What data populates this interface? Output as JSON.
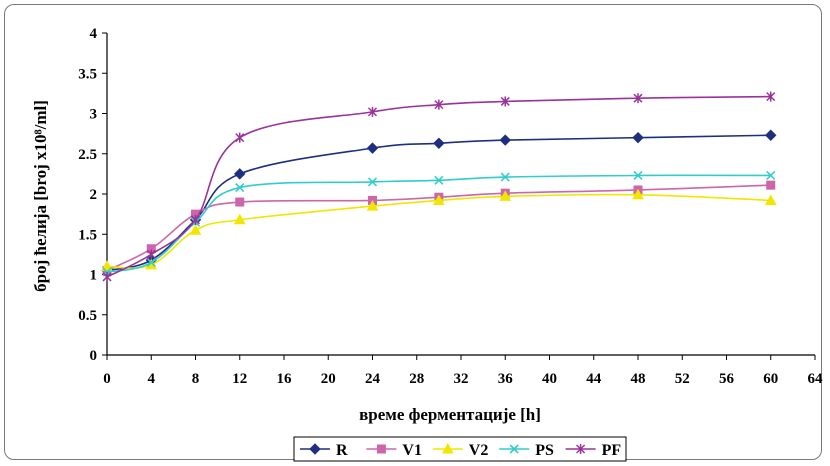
{
  "chart_data": {
    "type": "line",
    "xlabel": "време ферментације [h]",
    "ylabel": "број ћелија [broj x10⁸/ml]",
    "xlim": [
      0,
      64
    ],
    "ylim": [
      0,
      4
    ],
    "xticks": [
      0,
      4,
      8,
      12,
      16,
      20,
      24,
      28,
      32,
      36,
      40,
      44,
      48,
      52,
      56,
      60,
      64
    ],
    "yticks": [
      0,
      0.5,
      1,
      1.5,
      2,
      2.5,
      3,
      3.5,
      4
    ],
    "grid": false,
    "legend_position": "bottom",
    "x": [
      0,
      4,
      8,
      12,
      24,
      30,
      36,
      48,
      60
    ],
    "series": [
      {
        "name": "R",
        "color": "#1f2f80",
        "marker": "diamond",
        "values": [
          1.05,
          1.18,
          1.68,
          2.25,
          2.57,
          2.63,
          2.67,
          2.7,
          2.73
        ]
      },
      {
        "name": "V1",
        "color": "#cc66aa",
        "marker": "square",
        "values": [
          1.05,
          1.32,
          1.75,
          1.9,
          1.92,
          1.96,
          2.01,
          2.05,
          2.11
        ]
      },
      {
        "name": "V2",
        "color": "#f2e600",
        "marker": "triangle",
        "values": [
          1.1,
          1.12,
          1.55,
          1.68,
          1.85,
          1.92,
          1.97,
          1.99,
          1.92
        ]
      },
      {
        "name": "PS",
        "color": "#33cccc",
        "marker": "x",
        "values": [
          1.03,
          1.15,
          1.65,
          2.08,
          2.15,
          2.17,
          2.21,
          2.23,
          2.23
        ]
      },
      {
        "name": "PF",
        "color": "#993399",
        "marker": "star",
        "values": [
          0.97,
          1.25,
          1.68,
          2.7,
          3.02,
          3.11,
          3.15,
          3.19,
          3.21
        ]
      }
    ]
  }
}
